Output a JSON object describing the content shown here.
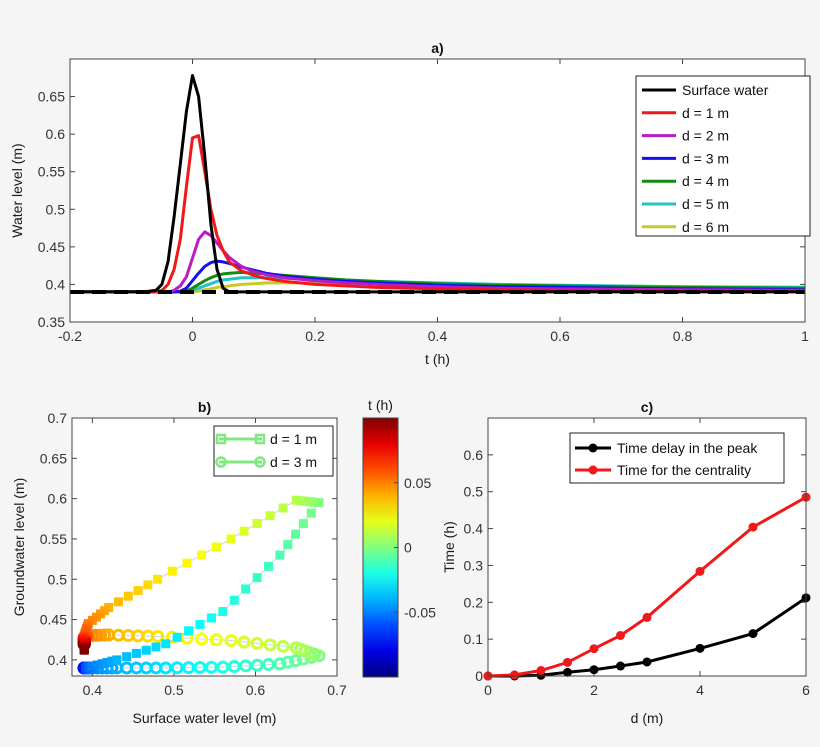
{
  "chart_data": [
    {
      "panel": "a",
      "type": "line",
      "title": "a)",
      "xlabel": "t (h)",
      "ylabel": "Water level (m)",
      "xlim": [
        -0.2,
        1
      ],
      "ylim": [
        0.35,
        0.7
      ],
      "xticks": [
        -0.2,
        0,
        0.2,
        0.4,
        0.6,
        0.8,
        1
      ],
      "xtick_labels": [
        "-0.2",
        "0",
        "0.2",
        "0.4",
        "0.6",
        "0.8",
        "1"
      ],
      "yticks": [
        0.35,
        0.4,
        0.45,
        0.5,
        0.55,
        0.6,
        0.65
      ],
      "ytick_labels": [
        "0.35",
        "0.4",
        "0.45",
        "0.5",
        "0.55",
        "0.6",
        "0.65"
      ],
      "legend_position": "top-right",
      "initial_level": 0.39,
      "x": [
        -0.2,
        -0.08,
        -0.06,
        -0.05,
        -0.04,
        -0.03,
        -0.02,
        -0.01,
        0,
        0.01,
        0.02,
        0.03,
        0.04,
        0.05,
        0.06,
        0.08,
        0.1,
        0.12,
        0.15,
        0.2,
        0.25,
        0.3,
        0.4,
        0.5,
        0.6,
        0.8,
        1.0
      ],
      "series": [
        {
          "name": "Surface water",
          "color": "#000000",
          "values": [
            0.39,
            0.39,
            0.392,
            0.4,
            0.43,
            0.49,
            0.56,
            0.63,
            0.678,
            0.65,
            0.57,
            0.48,
            0.42,
            0.395,
            0.39,
            0.39,
            0.39,
            0.39,
            0.39,
            0.39,
            0.39,
            0.39,
            0.39,
            0.39,
            0.39,
            0.39,
            0.39
          ]
        },
        {
          "name": "d = 1 m",
          "color": "#f01818",
          "values": [
            0.39,
            0.39,
            0.39,
            0.392,
            0.4,
            0.42,
            0.46,
            0.53,
            0.595,
            0.598,
            0.55,
            0.5,
            0.465,
            0.445,
            0.43,
            0.418,
            0.412,
            0.408,
            0.404,
            0.4,
            0.398,
            0.396,
            0.394,
            0.393,
            0.392,
            0.391,
            0.391
          ]
        },
        {
          "name": "d = 2 m",
          "color": "#b81cc8",
          "values": [
            0.39,
            0.39,
            0.39,
            0.39,
            0.39,
            0.392,
            0.398,
            0.41,
            0.435,
            0.46,
            0.47,
            0.465,
            0.455,
            0.445,
            0.436,
            0.424,
            0.417,
            0.413,
            0.409,
            0.405,
            0.402,
            0.4,
            0.397,
            0.395,
            0.394,
            0.393,
            0.392
          ]
        },
        {
          "name": "d = 3 m",
          "color": "#1010f0",
          "values": [
            0.39,
            0.39,
            0.39,
            0.39,
            0.39,
            0.39,
            0.391,
            0.395,
            0.405,
            0.415,
            0.424,
            0.429,
            0.431,
            0.43,
            0.428,
            0.423,
            0.419,
            0.415,
            0.411,
            0.407,
            0.404,
            0.402,
            0.399,
            0.397,
            0.396,
            0.394,
            0.393
          ]
        },
        {
          "name": "d = 4 m",
          "color": "#108a10",
          "values": [
            0.39,
            0.39,
            0.39,
            0.39,
            0.39,
            0.39,
            0.39,
            0.391,
            0.395,
            0.4,
            0.405,
            0.409,
            0.412,
            0.414,
            0.415,
            0.416,
            0.415,
            0.414,
            0.412,
            0.409,
            0.406,
            0.404,
            0.401,
            0.399,
            0.398,
            0.396,
            0.395
          ]
        },
        {
          "name": "d = 5 m",
          "color": "#20c4c4",
          "values": [
            0.39,
            0.39,
            0.39,
            0.39,
            0.39,
            0.39,
            0.39,
            0.39,
            0.392,
            0.395,
            0.398,
            0.401,
            0.404,
            0.406,
            0.407,
            0.409,
            0.409,
            0.409,
            0.408,
            0.407,
            0.405,
            0.404,
            0.402,
            0.4,
            0.399,
            0.397,
            0.396
          ]
        },
        {
          "name": "d = 6 m",
          "color": "#c8c828",
          "values": [
            0.39,
            0.39,
            0.39,
            0.39,
            0.39,
            0.39,
            0.39,
            0.39,
            0.39,
            0.391,
            0.393,
            0.394,
            0.396,
            0.397,
            0.398,
            0.4,
            0.401,
            0.402,
            0.402,
            0.402,
            0.402,
            0.401,
            0.4,
            0.399,
            0.398,
            0.397,
            0.396
          ]
        }
      ]
    },
    {
      "panel": "b",
      "type": "scatter",
      "title": "b)",
      "xlabel": "Surface water level (m)",
      "ylabel": "Groundwater level (m)",
      "xlim": [
        0.375,
        0.7
      ],
      "ylim": [
        0.38,
        0.7
      ],
      "xticks": [
        0.4,
        0.5,
        0.6,
        0.7
      ],
      "xtick_labels": [
        "0.4",
        "0.5",
        "0.6",
        "0.7"
      ],
      "yticks": [
        0.4,
        0.45,
        0.5,
        0.55,
        0.6,
        0.65,
        0.7
      ],
      "ytick_labels": [
        "0.4",
        "0.45",
        "0.5",
        "0.55",
        "0.6",
        "0.65",
        "0.7"
      ],
      "legend_position": "top-right",
      "series": [
        {
          "name": "d = 1 m",
          "marker": "square",
          "legend_color": "#80e880"
        },
        {
          "name": "d = 3 m",
          "marker": "circle",
          "legend_color": "#80e880"
        }
      ],
      "colorbar": {
        "title": "t (h)",
        "colormap": "jet",
        "range": [
          -0.1,
          0.1
        ],
        "ticks": [
          0.05,
          0,
          -0.05
        ],
        "tick_labels": [
          "0.05",
          "0",
          "-0.05"
        ]
      }
    },
    {
      "panel": "c",
      "type": "line",
      "title": "c)",
      "xlabel": "d (m)",
      "ylabel": "Time (h)",
      "xlim": [
        0,
        6
      ],
      "ylim": [
        0,
        0.7
      ],
      "xticks": [
        0,
        2,
        4,
        6
      ],
      "xtick_labels": [
        "0",
        "2",
        "4",
        "6"
      ],
      "yticks": [
        0,
        0.1,
        0.2,
        0.3,
        0.4,
        0.5,
        0.6
      ],
      "ytick_labels": [
        "0",
        "0.1",
        "0.2",
        "0.3",
        "0.4",
        "0.5",
        "0.6"
      ],
      "legend_position": "top-right",
      "x": [
        0,
        0.5,
        1,
        1.5,
        2,
        2.5,
        3,
        4,
        5,
        6
      ],
      "series": [
        {
          "name": "Time delay in the peak",
          "color": "#000000",
          "values": [
            0,
            0,
            0.002,
            0.01,
            0.017,
            0.027,
            0.038,
            0.075,
            0.115,
            0.212
          ]
        },
        {
          "name": "Time for the centrality",
          "color": "#f01818",
          "values": [
            0,
            0.003,
            0.015,
            0.037,
            0.074,
            0.11,
            0.159,
            0.284,
            0.404,
            0.485
          ]
        }
      ]
    }
  ]
}
